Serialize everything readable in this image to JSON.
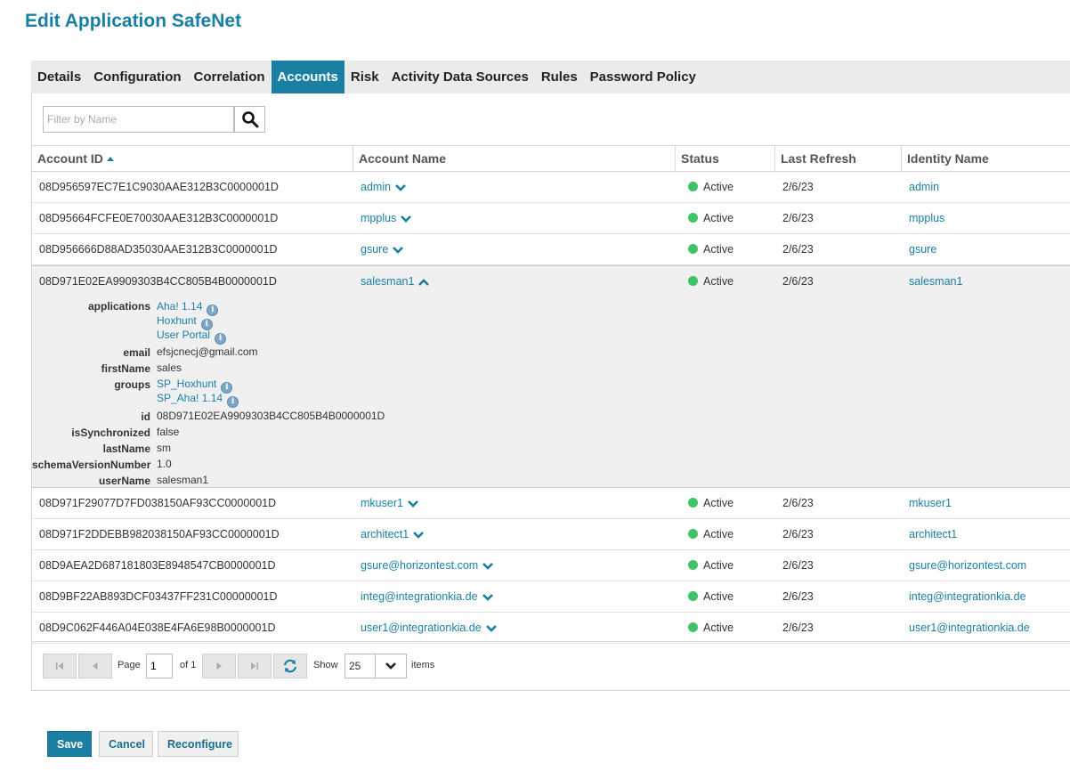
{
  "page": {
    "title": "Edit Application SafeNet"
  },
  "tabs": [
    "Details",
    "Configuration",
    "Correlation",
    "Accounts",
    "Risk",
    "Activity Data Sources",
    "Rules",
    "Password Policy"
  ],
  "active_tab": "Accounts",
  "filter": {
    "placeholder": "Filter by Name",
    "value": ""
  },
  "columns": {
    "account_id": "Account ID",
    "account_name": "Account Name",
    "status": "Status",
    "last_refresh": "Last Refresh",
    "identity_name": "Identity Name"
  },
  "rows": [
    {
      "id": "08D956597EC7E1C9030AAE312B3C0000001D",
      "name": "admin",
      "status": "Active",
      "refresh": "2/6/23",
      "identity": "admin"
    },
    {
      "id": "08D95664FCFE0E70030AAE312B3C0000001D",
      "name": "mpplus",
      "status": "Active",
      "refresh": "2/6/23",
      "identity": "mpplus"
    },
    {
      "id": "08D956666D88AD35030AAE312B3C0000001D",
      "name": "gsure",
      "status": "Active",
      "refresh": "2/6/23",
      "identity": "gsure"
    },
    {
      "id": "08D971E02EA9909303B4CC805B4B0000001D",
      "name": "salesman1",
      "status": "Active",
      "refresh": "2/6/23",
      "identity": "salesman1"
    },
    {
      "id": "08D971F29077D7FD038150AF93CC0000001D",
      "name": "mkuser1",
      "status": "Active",
      "refresh": "2/6/23",
      "identity": "mkuser1"
    },
    {
      "id": "08D971F2DDEBB982038150AF93CC0000001D",
      "name": "architect1",
      "status": "Active",
      "refresh": "2/6/23",
      "identity": "architect1"
    },
    {
      "id": "08D9AEA2D687181803E8948547CB0000001D",
      "name": "gsure@horizontest.com",
      "status": "Active",
      "refresh": "2/6/23",
      "identity": "gsure@horizontest.com"
    },
    {
      "id": "08D9BF22AB893DCF03437FF231C00000001D",
      "name": "integ@integrationkia.de",
      "status": "Active",
      "refresh": "2/6/23",
      "identity": "integ@integrationkia.de"
    },
    {
      "id": "08D9C062F446A04E038E4FA6E98B0000001D",
      "name": "user1@integrationkia.de",
      "status": "Active",
      "refresh": "2/6/23",
      "identity": "user1@integrationkia.de"
    }
  ],
  "expanded_details": {
    "applications_label": "applications",
    "applications": [
      "Aha! 1.14",
      "Hoxhunt",
      "User Portal"
    ],
    "email_label": "email",
    "email": "efsjcnecj@gmail.com",
    "firstName_label": "firstName",
    "firstName": "sales",
    "groups_label": "groups",
    "groups": [
      "SP_Hoxhunt",
      "SP_Aha! 1.14"
    ],
    "id_label": "id",
    "id": "08D971E02EA9909303B4CC805B4B0000001D",
    "isSynchronized_label": "isSynchronized",
    "isSynchronized": "false",
    "lastName_label": "lastName",
    "lastName": "sm",
    "schemaVersionNumber_label": "schemaVersionNumber",
    "schemaVersionNumber": "1.0",
    "userName_label": "userName",
    "userName": "salesman1"
  },
  "pager": {
    "page_label": "Page",
    "page": "1",
    "of_label": "of 1",
    "show_label": "Show",
    "page_size": "25",
    "items_label": "items"
  },
  "footer": {
    "save": "Save",
    "cancel": "Cancel",
    "reconfigure": "Reconfigure"
  },
  "colors": {
    "accent": "#1a7fa3",
    "active_status": "#3fc26a"
  }
}
